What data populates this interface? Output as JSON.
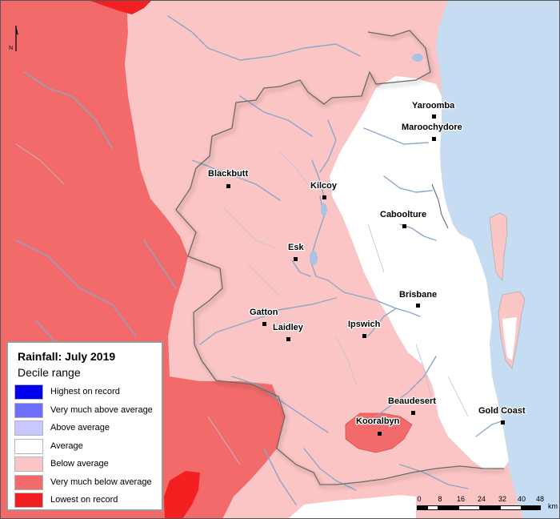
{
  "legend": {
    "title": "Rainfall: July 2019",
    "subtitle": "Decile range",
    "items": [
      {
        "label": "Highest on record",
        "color": "#0000ee"
      },
      {
        "label": "Very much above average",
        "color": "#7070ff"
      },
      {
        "label": "Above average",
        "color": "#c8c8ff"
      },
      {
        "label": "Average",
        "color": "#ffffff"
      },
      {
        "label": "Below average",
        "color": "#fcc5c5"
      },
      {
        "label": "Very much below average",
        "color": "#f36a6a"
      },
      {
        "label": "Lowest on record",
        "color": "#f22020"
      }
    ]
  },
  "towns": [
    {
      "name": "Yaroomba"
    },
    {
      "name": "Maroochydore"
    },
    {
      "name": "Blackbutt"
    },
    {
      "name": "Kilcoy"
    },
    {
      "name": "Caboolture"
    },
    {
      "name": "Esk"
    },
    {
      "name": "Brisbane"
    },
    {
      "name": "Gatton"
    },
    {
      "name": "Laidley"
    },
    {
      "name": "Ipswich"
    },
    {
      "name": "Beaudesert"
    },
    {
      "name": "Kooralbyn"
    },
    {
      "name": "Gold Coast"
    }
  ],
  "scale": {
    "ticks": [
      "0",
      "8",
      "16",
      "24",
      "32",
      "40",
      "48"
    ],
    "unit": "km"
  },
  "north_label": "N",
  "colors": {
    "ocean": "#c5dcf3",
    "below_average": "#fcc5c5",
    "very_much_below": "#f36a6a",
    "lowest": "#f22020",
    "average": "#ffffff",
    "river": "#8aa7c9"
  }
}
